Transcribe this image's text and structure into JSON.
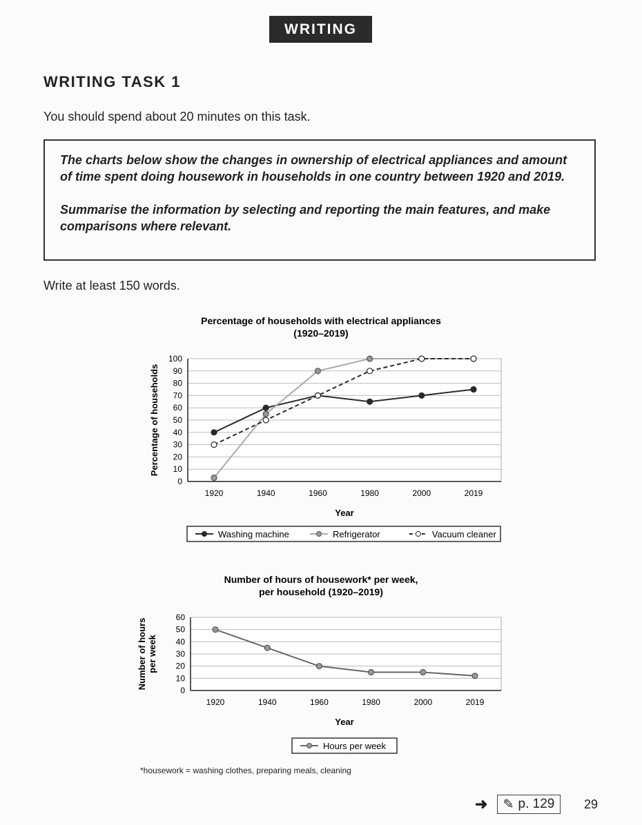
{
  "header": {
    "section": "WRITING",
    "task_title": "WRITING TASK 1"
  },
  "instructions": {
    "time": "You should spend about 20 minutes on this task.",
    "prompt_1": "The charts below show the changes in ownership of electrical appliances and amount of time spent doing housework in households in one country between 1920 and 2019.",
    "prompt_2": "Summarise the information by selecting and reporting the main features, and make comparisons where relevant.",
    "words": "Write at least 150 words."
  },
  "chart_data": [
    {
      "type": "line",
      "title": "Percentage of households with electrical appliances",
      "subtitle": "(1920–2019)",
      "xlabel": "Year",
      "ylabel": "Percentage of households",
      "categories": [
        "1920",
        "1940",
        "1960",
        "1980",
        "2000",
        "2019"
      ],
      "ylim": [
        0,
        100
      ],
      "yticks": [
        0,
        10,
        20,
        30,
        40,
        50,
        60,
        70,
        80,
        90,
        100
      ],
      "grid": true,
      "legend": "bottom",
      "series": [
        {
          "name": "Washing machine",
          "values": [
            40,
            60,
            70,
            65,
            70,
            75
          ],
          "color": "#2a2a2a",
          "style": "solid",
          "marker": "filled-dark"
        },
        {
          "name": "Refrigerator",
          "values": [
            3,
            55,
            90,
            100,
            100,
            100
          ],
          "color": "#aaaaaa",
          "style": "solid",
          "marker": "filled-gray"
        },
        {
          "name": "Vacuum cleaner",
          "values": [
            30,
            50,
            70,
            90,
            100,
            100
          ],
          "color": "#2a2a2a",
          "style": "dashed",
          "marker": "hollow"
        }
      ]
    },
    {
      "type": "line",
      "title": "Number of hours of housework* per week,",
      "subtitle": "per household (1920–2019)",
      "xlabel": "Year",
      "ylabel_1": "Number of hours",
      "ylabel_2": "per week",
      "categories": [
        "1920",
        "1940",
        "1960",
        "1980",
        "2000",
        "2019"
      ],
      "ylim": [
        0,
        60
      ],
      "yticks": [
        0,
        10,
        20,
        30,
        40,
        50,
        60
      ],
      "grid": true,
      "legend": "bottom",
      "series": [
        {
          "name": "Hours per week",
          "values": [
            50,
            35,
            20,
            15,
            15,
            12
          ],
          "color": "#666666",
          "style": "solid",
          "marker": "filled-gray"
        }
      ]
    }
  ],
  "footnote": "*housework = washing clothes, preparing meals, cleaning",
  "footer": {
    "arrow_icon": "arrow-right-icon",
    "pencil_icon": "pencil-icon",
    "page_ref": "p. 129",
    "page_number": "29"
  }
}
